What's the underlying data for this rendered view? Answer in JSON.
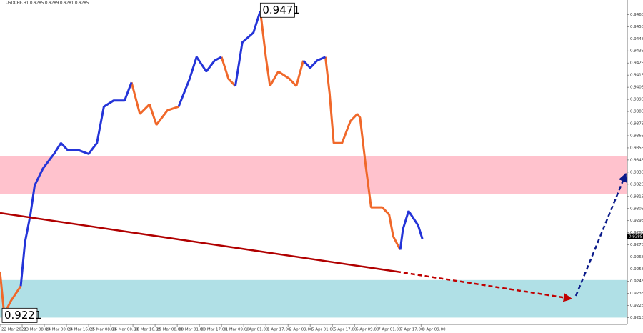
{
  "chart_data": {
    "type": "line",
    "title": "USDCHF,H1  0.9285 0.9289 0.9281 0.9285",
    "x": [
      0,
      3,
      8,
      15,
      18,
      22,
      25,
      31,
      39,
      44,
      49,
      57,
      64,
      70,
      75,
      82,
      90,
      95,
      101,
      108,
      113,
      121,
      129,
      137,
      142,
      149,
      155,
      160,
      165,
      170,
      175,
      183,
      188,
      192,
      195,
      201,
      209,
      214,
      219,
      224,
      229,
      235,
      238,
      241,
      247,
      253,
      258,
      260,
      264,
      268,
      276,
      281,
      284,
      289,
      291,
      295,
      302,
      305
    ],
    "series": [
      {
        "color": "#f0682a",
        "values": [
          0.9256,
          0.9221,
          0.9232,
          0.9244,
          null,
          null,
          null,
          null,
          null,
          null,
          null,
          null,
          null,
          null,
          null,
          null,
          null,
          0.9412,
          0.9386,
          0.9394,
          0.9377,
          0.9389,
          0.9392,
          null,
          null,
          null,
          null,
          0.9433,
          0.9415,
          0.9409,
          null,
          null,
          0.9471,
          0.9433,
          0.9409,
          0.9421,
          0.9415,
          0.9409,
          0.943,
          null,
          null,
          0.9433,
          0.9403,
          0.9362,
          0.9362,
          0.938,
          0.9386,
          0.9383,
          0.9344,
          0.9309,
          0.9309,
          0.9303,
          0.9285,
          0.9274,
          null,
          null,
          null,
          null
        ]
      },
      {
        "color": "#2434d8",
        "values": [
          null,
          null,
          null,
          0.9244,
          0.928,
          0.9303,
          0.9327,
          0.9341,
          0.9353,
          0.9362,
          0.9356,
          0.9356,
          0.9353,
          0.9362,
          0.9392,
          0.9397,
          0.9397,
          0.9412,
          null,
          null,
          null,
          null,
          0.9392,
          0.9415,
          0.9433,
          0.9421,
          0.943,
          0.9433,
          null,
          0.9409,
          0.9445,
          0.9453,
          0.9471,
          null,
          null,
          null,
          null,
          null,
          0.943,
          0.9424,
          0.943,
          0.9433,
          null,
          null,
          null,
          null,
          null,
          null,
          null,
          null,
          null,
          null,
          null,
          0.9274,
          0.9291,
          0.9306,
          0.9294,
          0.9283
        ]
      }
    ],
    "xlim": [
      0,
      453
    ],
    "ylim": [
      0.948,
      0.921
    ],
    "yticks": [
      0.9218,
      0.9228,
      0.9238,
      0.9248,
      0.9258,
      0.9268,
      0.9278,
      0.9288,
      0.9298,
      0.9308,
      0.9318,
      0.9328,
      0.9338,
      0.9348,
      0.9358,
      0.9368,
      0.9378,
      0.9388,
      0.9398,
      0.9408,
      0.9418,
      0.9428,
      0.9438,
      0.9448,
      0.9458,
      0.9468
    ],
    "xticks": [
      {
        "value": 0,
        "label": "22 Mar 2021"
      },
      {
        "value": 16,
        "label": "23 Mar 08:00"
      },
      {
        "value": 32,
        "label": "24 Mar 00:00"
      },
      {
        "value": 48,
        "label": "24 Mar 16:00"
      },
      {
        "value": 64,
        "label": "25 Mar 08:00"
      },
      {
        "value": 80,
        "label": "26 Mar 00:00"
      },
      {
        "value": 96,
        "label": "26 Mar 16:00"
      },
      {
        "value": 112,
        "label": "29 Mar 08:00"
      },
      {
        "value": 128,
        "label": "30 Mar 01:00"
      },
      {
        "value": 144,
        "label": "30 Mar 17:00"
      },
      {
        "value": 160,
        "label": "31 Mar 09:00"
      },
      {
        "value": 176,
        "label": "1 Apr 01:00"
      },
      {
        "value": 192,
        "label": "1 Apr 17:00"
      },
      {
        "value": 208,
        "label": "2 Apr 09:00"
      },
      {
        "value": 224,
        "label": "5 Apr 01:00"
      },
      {
        "value": 240,
        "label": "5 Apr 17:00"
      },
      {
        "value": 256,
        "label": "6 Apr 09:00"
      },
      {
        "value": 272,
        "label": "7 Apr 01:00"
      },
      {
        "value": 288,
        "label": "7 Apr 17:00"
      },
      {
        "value": 304,
        "label": "8 Apr 09:00"
      }
    ],
    "zones": [
      {
        "color": "#ffc2cd",
        "range": [
          0.9351,
          0.932
        ]
      },
      {
        "color": "#b0e0e6",
        "range": [
          0.9249,
          0.9218
        ]
      }
    ],
    "high_label": 0.9471,
    "low_label": 0.9221,
    "last_price": 0.9285
  }
}
